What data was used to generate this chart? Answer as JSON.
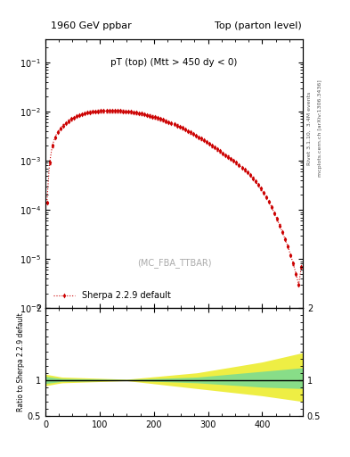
{
  "title_left": "1960 GeV ppbar",
  "title_right": "Top (parton level)",
  "main_label": "pT (top) (Mtt > 450 dy < 0)",
  "watermark": "(MC_FBA_TTBAR)",
  "right_label1": "Rivet 3.1.10,  3.4M events",
  "right_label2": "mcplots.cern.ch [arXiv:1306.3436]",
  "legend_label": "Sherpa 2.2.9 default",
  "ylabel_ratio": "Ratio to Sherpa 2.2.9 default",
  "xlim": [
    0,
    475
  ],
  "ylim_main": [
    1e-06,
    0.3
  ],
  "ylim_ratio": [
    0.5,
    2.0
  ],
  "line_color": "#cc0000",
  "marker_size": 3,
  "green_band_color": "#88dd88",
  "yellow_band_color": "#eeee44",
  "ratio_line_color": "#000000",
  "background_color": "#ffffff",
  "pT_values": [
    2.5,
    7.5,
    12.5,
    17.5,
    22.5,
    27.5,
    32.5,
    37.5,
    42.5,
    47.5,
    52.5,
    57.5,
    62.5,
    67.5,
    72.5,
    77.5,
    82.5,
    87.5,
    92.5,
    97.5,
    102.5,
    107.5,
    112.5,
    117.5,
    122.5,
    127.5,
    132.5,
    137.5,
    142.5,
    147.5,
    152.5,
    157.5,
    162.5,
    167.5,
    172.5,
    177.5,
    182.5,
    187.5,
    192.5,
    197.5,
    202.5,
    207.5,
    212.5,
    217.5,
    222.5,
    227.5,
    232.5,
    237.5,
    242.5,
    247.5,
    252.5,
    257.5,
    262.5,
    267.5,
    272.5,
    277.5,
    282.5,
    287.5,
    292.5,
    297.5,
    302.5,
    307.5,
    312.5,
    317.5,
    322.5,
    327.5,
    332.5,
    337.5,
    342.5,
    347.5,
    352.5,
    357.5,
    362.5,
    367.5,
    372.5,
    377.5,
    382.5,
    387.5,
    392.5,
    397.5,
    402.5,
    407.5,
    412.5,
    417.5,
    422.5,
    427.5,
    432.5,
    437.5,
    442.5,
    447.5,
    452.5,
    457.5,
    462.5,
    467.5,
    472.5
  ],
  "cross_section": [
    0.00014,
    0.0009,
    0.002,
    0.003,
    0.0038,
    0.0045,
    0.0052,
    0.0058,
    0.0064,
    0.007,
    0.0075,
    0.008,
    0.0085,
    0.0089,
    0.0092,
    0.0095,
    0.0097,
    0.0099,
    0.01,
    0.0101,
    0.0102,
    0.0102,
    0.0102,
    0.0102,
    0.0102,
    0.0102,
    0.0102,
    0.0102,
    0.0101,
    0.01,
    0.0099,
    0.0098,
    0.0096,
    0.0094,
    0.0092,
    0.009,
    0.0088,
    0.0085,
    0.0082,
    0.0079,
    0.0076,
    0.0073,
    0.007,
    0.0067,
    0.0064,
    0.0061,
    0.0058,
    0.0055,
    0.0052,
    0.0049,
    0.0046,
    0.0043,
    0.004,
    0.00375,
    0.0035,
    0.00325,
    0.003,
    0.0028,
    0.0026,
    0.0024,
    0.0022,
    0.002,
    0.00185,
    0.0017,
    0.00155,
    0.0014,
    0.0013,
    0.0012,
    0.0011,
    0.001,
    0.0009,
    0.00081,
    0.00072,
    0.00065,
    0.00058,
    0.00051,
    0.00044,
    0.00038,
    0.00032,
    0.00027,
    0.00022,
    0.00018,
    0.000145,
    0.000115,
    8.5e-05,
    6.5e-05,
    4.8e-05,
    3.5e-05,
    2.5e-05,
    1.8e-05,
    1.2e-05,
    8e-06,
    5e-06,
    3e-06,
    7e-06
  ]
}
